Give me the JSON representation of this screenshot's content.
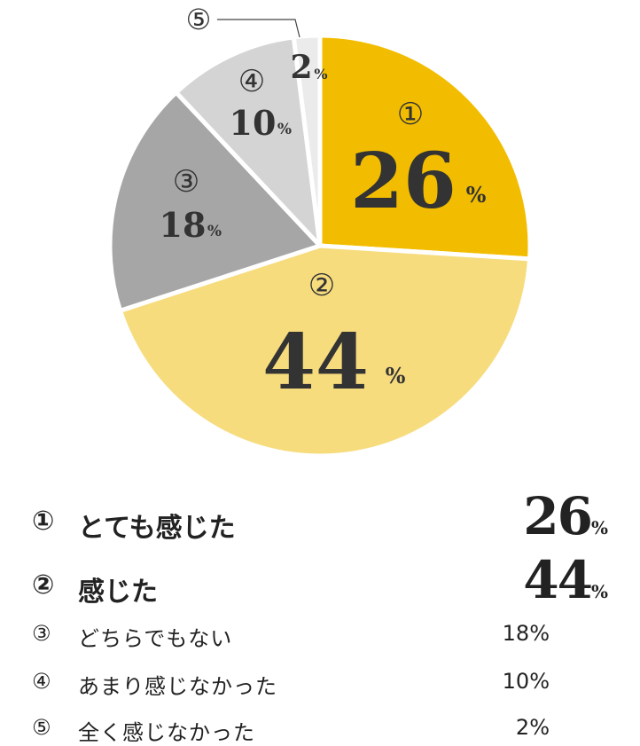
{
  "chart_data": {
    "type": "pie",
    "slices": [
      {
        "marker": "①",
        "label": "とても感じた",
        "value": 26,
        "color": "#F2BD00"
      },
      {
        "marker": "②",
        "label": "感じた",
        "value": 44,
        "color": "#F7DC7E"
      },
      {
        "marker": "③",
        "label": "どちらでもない",
        "value": 18,
        "color": "#A6A6A6"
      },
      {
        "marker": "④",
        "label": "あまり感じなかった",
        "value": 10,
        "color": "#D4D4D4"
      },
      {
        "marker": "⑤",
        "label": "全く感じなかった",
        "value": 2,
        "color": "#EBEBEB"
      }
    ],
    "unit": "%"
  },
  "legend": {
    "rows": [
      {
        "marker": "①",
        "label": "とても感じた",
        "value": "26",
        "unit": "%"
      },
      {
        "marker": "②",
        "label": "感じた",
        "value": "44",
        "unit": "%"
      },
      {
        "marker": "③",
        "label": "どちらでもない",
        "value": "18%"
      },
      {
        "marker": "④",
        "label": "あまり感じなかった",
        "value": "10%"
      },
      {
        "marker": "⑤",
        "label": "全く感じなかった",
        "value": "2%"
      }
    ]
  }
}
